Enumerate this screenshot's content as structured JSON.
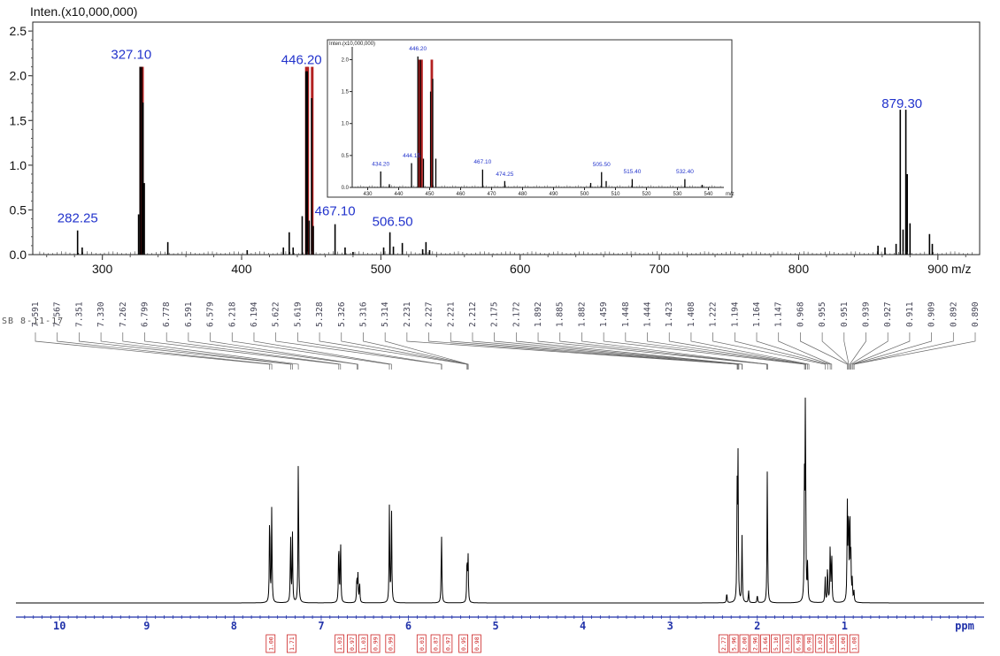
{
  "chart_data": [
    {
      "type": "bar",
      "kind": "mass-spectrum",
      "ylabel": "Inten.(x10,000,000)",
      "xlabel": "m/z",
      "xlim": [
        250,
        930
      ],
      "ylim": [
        0,
        2.6
      ],
      "x_ticks": [
        "300",
        "400",
        "500",
        "600",
        "700",
        "800",
        "900"
      ],
      "y_ticks": [
        "0.0",
        "0.5",
        "1.0",
        "1.5",
        "2.0",
        "2.5"
      ],
      "peak_labels": [
        {
          "mz": 282.25,
          "label": "282.25"
        },
        {
          "mz": 327.1,
          "label": "327.10"
        },
        {
          "mz": 446.2,
          "label": "446.20"
        },
        {
          "mz": 467.1,
          "label": "467.10"
        },
        {
          "mz": 506.5,
          "label": "506.50"
        },
        {
          "mz": 879.3,
          "label": "879.30"
        }
      ],
      "peaks": [
        {
          "mz": 282.2,
          "i": 0.27
        },
        {
          "mz": 285.5,
          "i": 0.08
        },
        {
          "mz": 326.0,
          "i": 0.45
        },
        {
          "mz": 327.1,
          "i": 2.1
        },
        {
          "mz": 328.3,
          "i": 2.1
        },
        {
          "mz": 329.2,
          "i": 1.7
        },
        {
          "mz": 330.1,
          "i": 0.8
        },
        {
          "mz": 347.0,
          "i": 0.14
        },
        {
          "mz": 404.0,
          "i": 0.05
        },
        {
          "mz": 430.0,
          "i": 0.08
        },
        {
          "mz": 434.2,
          "i": 0.25
        },
        {
          "mz": 437.0,
          "i": 0.08
        },
        {
          "mz": 443.5,
          "i": 0.43
        },
        {
          "mz": 446.2,
          "i": 2.05
        },
        {
          "mz": 447.2,
          "i": 2.05
        },
        {
          "mz": 448.5,
          "i": 0.38
        },
        {
          "mz": 450.3,
          "i": 1.75
        },
        {
          "mz": 451.5,
          "i": 0.32
        },
        {
          "mz": 467.1,
          "i": 0.34
        },
        {
          "mz": 474.3,
          "i": 0.08
        },
        {
          "mz": 480.0,
          "i": 0.03
        },
        {
          "mz": 502.0,
          "i": 0.08
        },
        {
          "mz": 506.5,
          "i": 0.25
        },
        {
          "mz": 509.0,
          "i": 0.09
        },
        {
          "mz": 515.4,
          "i": 0.13
        },
        {
          "mz": 530.0,
          "i": 0.06
        },
        {
          "mz": 532.4,
          "i": 0.14
        },
        {
          "mz": 535.0,
          "i": 0.05
        },
        {
          "mz": 857.0,
          "i": 0.1
        },
        {
          "mz": 862.0,
          "i": 0.08
        },
        {
          "mz": 870.0,
          "i": 0.12
        },
        {
          "mz": 873.0,
          "i": 1.62
        },
        {
          "mz": 875.0,
          "i": 0.28
        },
        {
          "mz": 877.0,
          "i": 1.62
        },
        {
          "mz": 878.0,
          "i": 0.9
        },
        {
          "mz": 880.0,
          "i": 0.35
        },
        {
          "mz": 894.0,
          "i": 0.23
        },
        {
          "mz": 896.0,
          "i": 0.12
        }
      ],
      "red_overlay_peaks": [
        327.5,
        328.8,
        446.5,
        447.5,
        450.7
      ],
      "inset": {
        "ylabel": "Inten.(x10,000,000)",
        "xlabel": "m/z",
        "xlim": [
          425,
          545
        ],
        "ylim": [
          0,
          2.2
        ],
        "x_ticks": [
          "430",
          "440",
          "450",
          "460",
          "470",
          "480",
          "490",
          "500",
          "510",
          "520",
          "530",
          "540"
        ],
        "y_ticks": [
          "0.0",
          "0.5",
          "1.0",
          "1.5",
          "2.0"
        ],
        "peak_labels": [
          {
            "mz": 434.2,
            "label": "434.20"
          },
          {
            "mz": 444.15,
            "label": "444.15"
          },
          {
            "mz": 446.2,
            "label": "446.20"
          },
          {
            "mz": 467.1,
            "label": "467.10"
          },
          {
            "mz": 474.25,
            "label": "474.25"
          },
          {
            "mz": 505.5,
            "label": "505.50"
          },
          {
            "mz": 515.4,
            "label": "515.40"
          },
          {
            "mz": 532.4,
            "label": "532.40"
          }
        ],
        "peaks": [
          {
            "mz": 434.2,
            "i": 0.25
          },
          {
            "mz": 437.0,
            "i": 0.05
          },
          {
            "mz": 444.15,
            "i": 0.38
          },
          {
            "mz": 446.2,
            "i": 2.05
          },
          {
            "mz": 447.0,
            "i": 2.0
          },
          {
            "mz": 448.0,
            "i": 0.45
          },
          {
            "mz": 450.3,
            "i": 1.5
          },
          {
            "mz": 451.0,
            "i": 1.7
          },
          {
            "mz": 452.0,
            "i": 0.45
          },
          {
            "mz": 467.1,
            "i": 0.28
          },
          {
            "mz": 474.25,
            "i": 0.1
          },
          {
            "mz": 502.0,
            "i": 0.07
          },
          {
            "mz": 505.5,
            "i": 0.24
          },
          {
            "mz": 507.0,
            "i": 0.1
          },
          {
            "mz": 515.4,
            "i": 0.13
          },
          {
            "mz": 532.4,
            "i": 0.13
          },
          {
            "mz": 538.0,
            "i": 0.04
          }
        ]
      }
    },
    {
      "type": "line",
      "kind": "1H-NMR",
      "sample_id": "SB 8-11-17",
      "xlabel": "ppm",
      "xlim": [
        10.5,
        -0.6
      ],
      "x_ticks": [
        "10",
        "9",
        "8",
        "7",
        "6",
        "5",
        "4",
        "3",
        "2",
        "1"
      ],
      "shift_labels": [
        "7.591",
        "7.567",
        "7.351",
        "7.330",
        "7.262",
        "6.799",
        "6.778",
        "6.591",
        "6.579",
        "6.218",
        "6.194",
        "5.622",
        "5.619",
        "5.328",
        "5.326",
        "5.316",
        "5.314",
        "2.231",
        "2.227",
        "2.221",
        "2.212",
        "2.175",
        "2.172",
        "1.892",
        "1.885",
        "1.882",
        "1.459",
        "1.448",
        "1.444",
        "1.423",
        "1.408",
        "1.222",
        "1.194",
        "1.164",
        "1.147",
        "0.968",
        "0.955",
        "0.951",
        "0.939",
        "0.927",
        "0.911",
        "0.909",
        "0.892",
        "0.890"
      ],
      "integrals": [
        {
          "ppm": 7.58,
          "value": "1.00"
        },
        {
          "ppm": 7.34,
          "value": "1.71"
        },
        {
          "ppm": 6.79,
          "value": "1.03"
        },
        {
          "ppm": 6.65,
          "value": "0.97"
        },
        {
          "ppm": 6.52,
          "value": "1.03"
        },
        {
          "ppm": 6.38,
          "value": "0.99"
        },
        {
          "ppm": 6.21,
          "value": "0.99"
        },
        {
          "ppm": 5.85,
          "value": "0.03"
        },
        {
          "ppm": 5.69,
          "value": "0.87"
        },
        {
          "ppm": 5.55,
          "value": "0.97"
        },
        {
          "ppm": 5.37,
          "value": "0.95"
        },
        {
          "ppm": 5.22,
          "value": "0.98"
        },
        {
          "ppm": 2.39,
          "value": "2.77"
        },
        {
          "ppm": 2.27,
          "value": "5.96"
        },
        {
          "ppm": 2.15,
          "value": "2.00"
        },
        {
          "ppm": 2.03,
          "value": "2.96"
        },
        {
          "ppm": 1.91,
          "value": "3.66"
        },
        {
          "ppm": 1.79,
          "value": "5.10"
        },
        {
          "ppm": 1.66,
          "value": "3.03"
        },
        {
          "ppm": 1.53,
          "value": "6.99"
        },
        {
          "ppm": 1.41,
          "value": "0.98"
        },
        {
          "ppm": 1.28,
          "value": "3.02"
        },
        {
          "ppm": 1.15,
          "value": "1.06"
        },
        {
          "ppm": 1.02,
          "value": "3.00"
        },
        {
          "ppm": 0.89,
          "value": "1.08"
        }
      ],
      "signals": [
        {
          "ppm": 7.591,
          "h": 0.45
        },
        {
          "ppm": 7.567,
          "h": 0.45
        },
        {
          "ppm": 7.351,
          "h": 0.33
        },
        {
          "ppm": 7.33,
          "h": 0.33
        },
        {
          "ppm": 7.262,
          "h": 0.71
        },
        {
          "ppm": 6.799,
          "h": 0.31
        },
        {
          "ppm": 6.778,
          "h": 0.31
        },
        {
          "ppm": 6.591,
          "h": 0.13
        },
        {
          "ppm": 6.579,
          "h": 0.13
        },
        {
          "ppm": 6.56,
          "h": 0.1
        },
        {
          "ppm": 6.218,
          "h": 0.45
        },
        {
          "ppm": 6.194,
          "h": 0.45
        },
        {
          "ppm": 5.622,
          "h": 0.18
        },
        {
          "ppm": 5.619,
          "h": 0.18
        },
        {
          "ppm": 5.328,
          "h": 0.22
        },
        {
          "ppm": 5.316,
          "h": 0.22
        },
        {
          "ppm": 2.35,
          "h": 0.05
        },
        {
          "ppm": 2.231,
          "h": 0.5
        },
        {
          "ppm": 2.221,
          "h": 0.66
        },
        {
          "ppm": 2.175,
          "h": 0.31
        },
        {
          "ppm": 2.1,
          "h": 0.06
        },
        {
          "ppm": 2.0,
          "h": 0.04
        },
        {
          "ppm": 1.885,
          "h": 0.64
        },
        {
          "ppm": 1.459,
          "h": 0.56
        },
        {
          "ppm": 1.448,
          "h": 1.0
        },
        {
          "ppm": 1.423,
          "h": 0.18
        },
        {
          "ppm": 1.222,
          "h": 0.12
        },
        {
          "ppm": 1.194,
          "h": 0.18
        },
        {
          "ppm": 1.164,
          "h": 0.28
        },
        {
          "ppm": 1.147,
          "h": 0.25
        },
        {
          "ppm": 0.968,
          "h": 0.44
        },
        {
          "ppm": 0.955,
          "h": 0.45
        },
        {
          "ppm": 0.939,
          "h": 0.42
        },
        {
          "ppm": 0.927,
          "h": 0.2
        },
        {
          "ppm": 0.911,
          "h": 0.1
        },
        {
          "ppm": 0.892,
          "h": 0.05
        }
      ]
    }
  ]
}
